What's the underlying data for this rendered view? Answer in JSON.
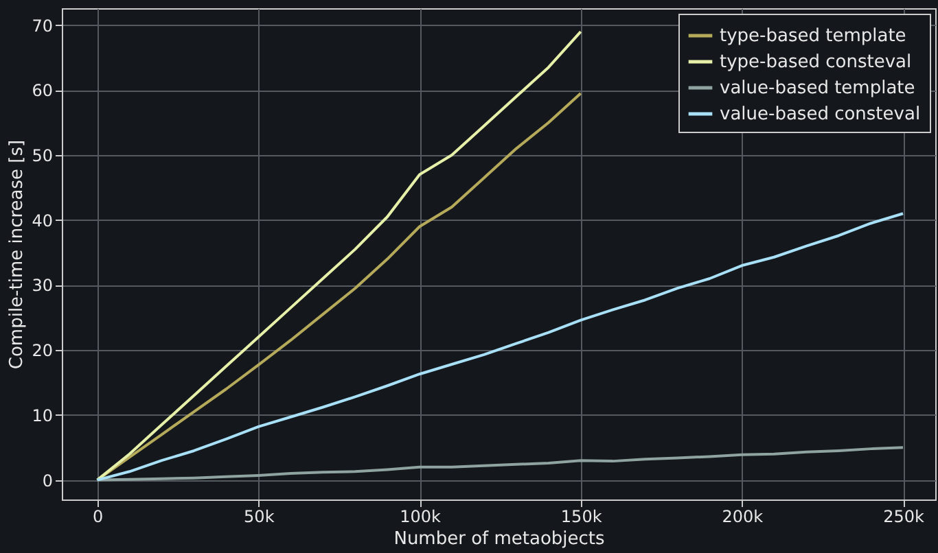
{
  "chart_data": {
    "type": "line",
    "xlabel": "Number of metaobjects",
    "ylabel": "Compile-time increase [s]",
    "xlim": [
      -11000,
      260000
    ],
    "ylim": [
      -3,
      72.6
    ],
    "xticks": [
      {
        "value": 0,
        "label": "0"
      },
      {
        "value": 50000,
        "label": "50k"
      },
      {
        "value": 100000,
        "label": "100k"
      },
      {
        "value": 150000,
        "label": "150k"
      },
      {
        "value": 200000,
        "label": "200k"
      },
      {
        "value": 250000,
        "label": "250k"
      }
    ],
    "yticks": [
      0,
      10,
      20,
      30,
      40,
      50,
      60,
      70
    ],
    "grid": true,
    "legend": "top right",
    "marker": "none",
    "line_style": "solid",
    "series": [
      {
        "name": "type-based template",
        "color": "#b5a95a",
        "x": [
          0,
          10000,
          20000,
          30000,
          40000,
          50000,
          60000,
          70000,
          80000,
          90000,
          100000,
          110000,
          120000,
          130000,
          140000,
          150000
        ],
        "values": [
          0,
          3.5,
          7,
          10.5,
          14,
          17.7,
          21.5,
          25.5,
          29.5,
          34,
          39,
          42,
          46.5,
          51,
          55,
          59.5
        ]
      },
      {
        "name": "type-based consteval",
        "color": "#e6f0a8",
        "x": [
          0,
          10000,
          20000,
          30000,
          40000,
          50000,
          60000,
          70000,
          80000,
          90000,
          100000,
          110000,
          120000,
          130000,
          140000,
          150000
        ],
        "values": [
          0,
          4,
          8.5,
          13,
          17.5,
          22,
          26.5,
          31,
          35.5,
          40.5,
          47,
          50,
          54.5,
          59,
          63.5,
          69
        ]
      },
      {
        "name": "value-based template",
        "color": "#8fa3a0",
        "x": [
          0,
          10000,
          20000,
          30000,
          40000,
          50000,
          60000,
          70000,
          80000,
          90000,
          100000,
          110000,
          120000,
          130000,
          140000,
          150000,
          160000,
          170000,
          180000,
          190000,
          200000,
          210000,
          220000,
          230000,
          240000,
          250000
        ],
        "values": [
          0,
          0.1,
          0.2,
          0.3,
          0.5,
          0.7,
          1,
          1.2,
          1.3,
          1.6,
          2,
          2,
          2.2,
          2.4,
          2.6,
          3,
          2.9,
          3.2,
          3.4,
          3.6,
          3.9,
          4,
          4.3,
          4.5,
          4.8,
          5
        ]
      },
      {
        "name": "value-based consteval",
        "color": "#a8e0f8",
        "x": [
          0,
          10000,
          20000,
          30000,
          40000,
          50000,
          60000,
          70000,
          80000,
          90000,
          100000,
          110000,
          120000,
          130000,
          140000,
          150000,
          160000,
          170000,
          180000,
          190000,
          200000,
          210000,
          220000,
          230000,
          240000,
          250000
        ],
        "values": [
          0,
          1.3,
          3,
          4.5,
          6.3,
          8.2,
          9.7,
          11.2,
          12.8,
          14.5,
          16.3,
          17.8,
          19.3,
          21,
          22.7,
          24.6,
          26.2,
          27.7,
          29.5,
          31,
          33,
          34.3,
          36,
          37.6,
          39.5,
          41
        ]
      }
    ]
  }
}
